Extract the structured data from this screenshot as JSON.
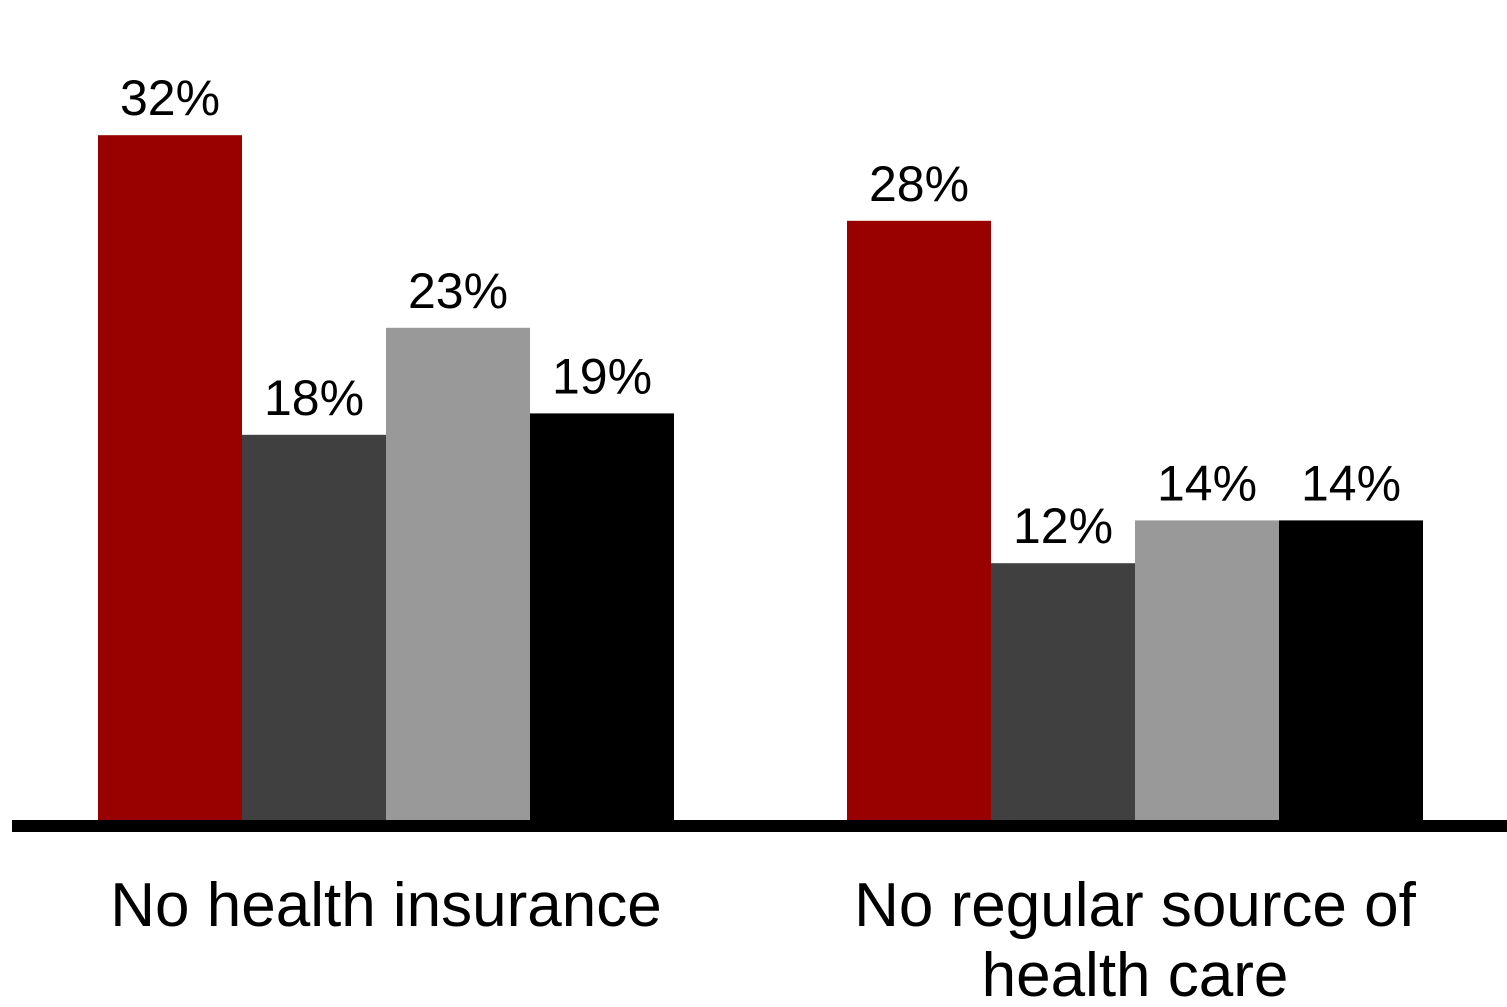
{
  "chart_data": {
    "type": "bar",
    "title": "",
    "xlabel": "",
    "ylabel": "",
    "ylim": [
      0,
      35
    ],
    "grid": false,
    "legend": "none",
    "categories": [
      [
        "No health insurance"
      ],
      [
        "No regular source of",
        "health care"
      ]
    ],
    "series": [
      {
        "color": "#990000",
        "values": [
          32,
          28
        ],
        "labels": [
          "32%",
          "28%"
        ]
      },
      {
        "color": "#404040",
        "values": [
          18,
          12
        ],
        "labels": [
          "18%",
          "12%"
        ]
      },
      {
        "color": "#999999",
        "values": [
          23,
          14
        ],
        "labels": [
          "23%",
          "14%"
        ]
      },
      {
        "color": "#000000",
        "values": [
          19,
          14
        ],
        "labels": [
          "19%",
          "14%"
        ]
      }
    ],
    "axis_color": "#000000"
  }
}
